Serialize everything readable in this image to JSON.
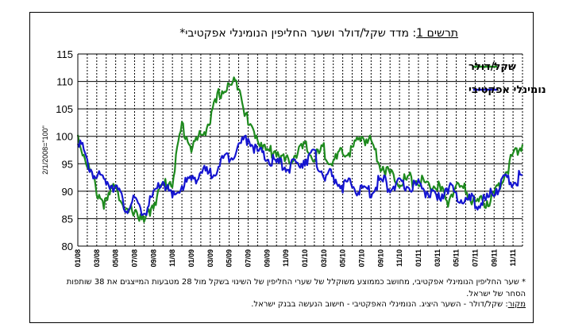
{
  "title": {
    "label": "תרשים 1",
    "text": ": מדד שקל/דולר ושער החליפין הנומינלי אפקטיבי*"
  },
  "notes": {
    "footnote": "* שער החליפין הנומינלי אפקטיבי, מחושב כממוצע משוקלל של שערי החליפין של השינוי בשקל מול 28 מטבעות המייצגים את 38 שותפות הסחר של ישראל.",
    "source_label": "מקור",
    "source_text": ": שקל/דולר - השער היציג. הנומינלי האפקטיבי - חישוב הנעשה בבנק ישראל."
  },
  "chart_data": {
    "type": "line",
    "ylabel": "2/1/2008=\"100\"",
    "ylim": [
      80,
      115
    ],
    "yticks": [
      80,
      85,
      90,
      95,
      100,
      105,
      110,
      115
    ],
    "xlim": [
      0,
      47
    ],
    "categories": [
      "01/08",
      "03/08",
      "05/08",
      "07/08",
      "09/08",
      "11/08",
      "01/09",
      "03/09",
      "05/09",
      "07/09",
      "09/09",
      "11/09",
      "01/10",
      "03/10",
      "05/10",
      "07/10",
      "09/10",
      "11/10",
      "01/11",
      "03/11",
      "05/11",
      "07/11",
      "09/11",
      "11/11"
    ],
    "grid": "vertical dashed every month, horizontal solid at ticks",
    "legend_position": "top-right",
    "series": [
      {
        "name": "שקל/דולר",
        "color": "#1e8a1e",
        "x": [
          0,
          1,
          2,
          3,
          4,
          5,
          6,
          7,
          8,
          9,
          10,
          11,
          12,
          13,
          14,
          15,
          16,
          17,
          18,
          19,
          20,
          21,
          22,
          23,
          24,
          25,
          26,
          27,
          28,
          29,
          30,
          31,
          32,
          33,
          34,
          35,
          36,
          37,
          38,
          39,
          40,
          41,
          42,
          43,
          44,
          45,
          46,
          47
        ],
        "y": [
          100,
          95,
          90,
          87.5,
          92,
          85.5,
          87,
          84,
          88,
          91,
          92,
          102,
          98,
          100,
          103,
          108,
          109,
          110,
          102,
          100,
          97,
          97.5,
          95,
          97,
          98,
          96,
          97.5,
          95,
          97,
          97.5,
          100,
          99,
          95,
          93,
          92,
          92,
          92,
          91,
          91,
          88,
          91,
          90,
          88,
          88,
          89,
          93,
          96,
          98.5
        ]
      },
      {
        "name": "נומינלי אפקטיבי",
        "color": "#1515d0",
        "x": [
          0,
          1,
          2,
          3,
          4,
          5,
          6,
          7,
          8,
          9,
          10,
          11,
          12,
          13,
          14,
          15,
          16,
          17,
          18,
          19,
          20,
          21,
          22,
          23,
          24,
          25,
          26,
          27,
          28,
          29,
          30,
          31,
          32,
          33,
          34,
          35,
          36,
          37,
          38,
          39,
          40,
          41,
          42,
          43,
          44,
          45,
          46,
          47
        ],
        "y": [
          100,
          95,
          92.5,
          92,
          91,
          87,
          88,
          86,
          89,
          92,
          88.5,
          91,
          92,
          93.5,
          93,
          95,
          96.5,
          98,
          100,
          97,
          96,
          95,
          94.5,
          94.5,
          96,
          96.5,
          93,
          92.5,
          91,
          91,
          90,
          90,
          92,
          91,
          91,
          91,
          91,
          90,
          88,
          91,
          89,
          88.5,
          88,
          88,
          90,
          92,
          91.5,
          93
        ]
      }
    ]
  }
}
